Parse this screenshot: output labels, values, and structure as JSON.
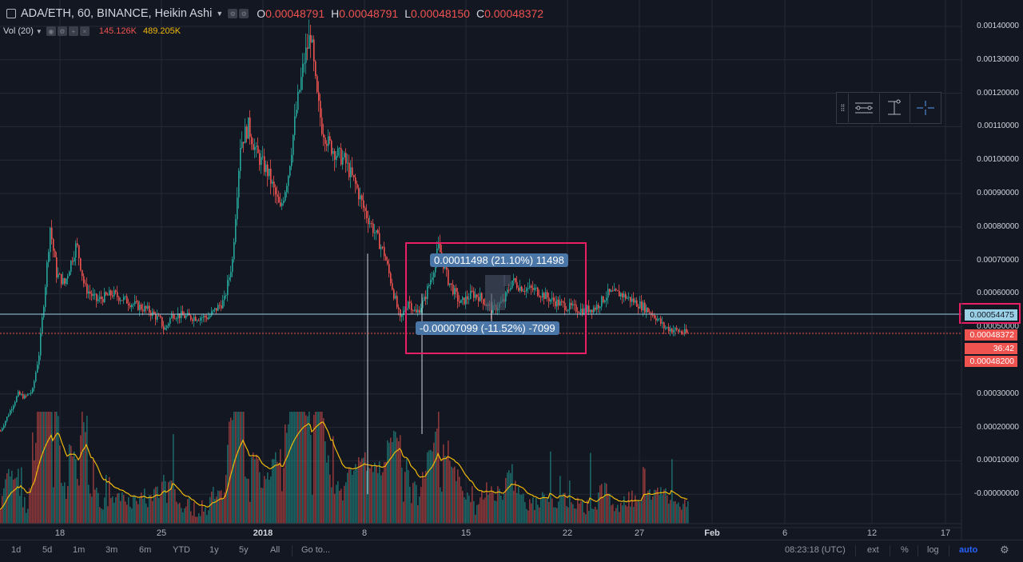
{
  "header": {
    "symbol_title": "ADA/ETH, 60, BINANCE, Heikin Ashi",
    "ohlc": [
      {
        "key": "O",
        "value": "0.00048791"
      },
      {
        "key": "H",
        "value": "0.00048791"
      },
      {
        "key": "L",
        "value": "0.00048150"
      },
      {
        "key": "C",
        "value": "0.00048372"
      }
    ]
  },
  "volume_study": {
    "label": "Vol (20)",
    "value_1": "145.126K",
    "value_2": "489.205K"
  },
  "price_scale": {
    "ticks": [
      "0.00140000",
      "0.00130000",
      "0.00120000",
      "0.00110000",
      "0.00100000",
      "0.00090000",
      "0.00080000",
      "0.00070000",
      "0.00060000",
      "0.00030000",
      "0.00020000",
      "0.00010000",
      "-0.00000000"
    ],
    "crosshair_price": "0.00054475",
    "last_price": "0.00048372",
    "countdown": "36:42",
    "low_price": "0.00048200",
    "hidden_tick": "0.00050000"
  },
  "measure": {
    "up_label": "0.00011498 (21.10%) 11498",
    "down_label": "-0.00007099 (-11.52%) -7099"
  },
  "time_axis": [
    "18",
    "25",
    "2018",
    "8",
    "15",
    "22",
    "27",
    "Feb",
    "6",
    "12",
    "17"
  ],
  "bottom_bar": {
    "ranges": [
      "1d",
      "5d",
      "1m",
      "3m",
      "6m",
      "YTD",
      "1y",
      "5y",
      "All"
    ],
    "goto": "Go to...",
    "clock": "08:23:18 (UTC)",
    "ext": "ext",
    "percent": "%",
    "log": "log",
    "auto": "auto"
  },
  "colors": {
    "background": "#131722",
    "up": "#26a69a",
    "down": "#ef5350",
    "highlight_box": "#e91e63",
    "measure_label": "#4a76a8",
    "crosshair": "#9ad0e6",
    "ma_line": "#f0b90b"
  },
  "chart_data": {
    "type": "candlestick",
    "title": "ADA/ETH, 60, BINANCE, Heikin Ashi",
    "interval": "60",
    "style": "Heikin Ashi",
    "y_scale": "price",
    "ylim": [
      -2e-05,
      0.00147
    ],
    "x_ticks": [
      "18",
      "25",
      "2018",
      "8",
      "15",
      "22",
      "27",
      "Feb",
      "6",
      "12",
      "17"
    ],
    "price_path": [
      [
        0,
        0.00019
      ],
      [
        14,
        0.00026
      ],
      [
        22,
        0.0003
      ],
      [
        30,
        0.00029
      ],
      [
        40,
        0.00031
      ],
      [
        48,
        0.00042
      ],
      [
        55,
        0.0006
      ],
      [
        62,
        0.0008
      ],
      [
        70,
        0.00066
      ],
      [
        80,
        0.00063
      ],
      [
        95,
        0.00075
      ],
      [
        105,
        0.00062
      ],
      [
        120,
        0.00058
      ],
      [
        140,
        0.0006
      ],
      [
        165,
        0.00057
      ],
      [
        185,
        0.00055
      ],
      [
        200,
        0.00052
      ],
      [
        205,
        0.00049
      ],
      [
        215,
        0.00054
      ],
      [
        235,
        0.00053
      ],
      [
        260,
        0.00053
      ],
      [
        280,
        0.00058
      ],
      [
        290,
        0.0007
      ],
      [
        300,
        0.00105
      ],
      [
        310,
        0.0011
      ],
      [
        320,
        0.00102
      ],
      [
        335,
        0.00096
      ],
      [
        350,
        0.00085
      ],
      [
        360,
        0.00096
      ],
      [
        370,
        0.00115
      ],
      [
        380,
        0.0013
      ],
      [
        388,
        0.00138
      ],
      [
        395,
        0.0012
      ],
      [
        402,
        0.0011
      ],
      [
        410,
        0.00105
      ],
      [
        420,
        0.00102
      ],
      [
        430,
        0.001
      ],
      [
        445,
        0.00092
      ],
      [
        455,
        0.00085
      ],
      [
        465,
        0.0008
      ],
      [
        480,
        0.00072
      ],
      [
        490,
        0.00062
      ],
      [
        500,
        0.00052
      ],
      [
        510,
        0.00058
      ],
      [
        520,
        0.00054
      ],
      [
        530,
        0.00058
      ],
      [
        540,
        0.00066
      ],
      [
        548,
        0.00074
      ],
      [
        560,
        0.00064
      ],
      [
        575,
        0.00057
      ],
      [
        590,
        0.0006
      ],
      [
        600,
        0.00059
      ],
      [
        615,
        0.00055
      ],
      [
        630,
        0.00058
      ],
      [
        640,
        0.00064
      ],
      [
        650,
        0.00062
      ],
      [
        670,
        0.00061
      ],
      [
        690,
        0.00058
      ],
      [
        710,
        0.00056
      ],
      [
        730,
        0.00055
      ],
      [
        745,
        0.00056
      ],
      [
        760,
        0.0006
      ],
      [
        775,
        0.0006
      ],
      [
        790,
        0.00058
      ],
      [
        805,
        0.00056
      ],
      [
        820,
        0.00053
      ],
      [
        830,
        0.0005
      ],
      [
        845,
        0.00049
      ],
      [
        860,
        0.00048
      ]
    ],
    "spikes": [
      {
        "x": 460,
        "low": 0.0,
        "high": 0.00072
      },
      {
        "x": 528,
        "low": 0.00018,
        "high": 0.0006
      },
      {
        "x": 615,
        "low": 0.00051,
        "high": 0.0006
      }
    ],
    "volume_series": [
      {
        "name": "Vol (20)",
        "ma_label": "MA"
      }
    ]
  }
}
